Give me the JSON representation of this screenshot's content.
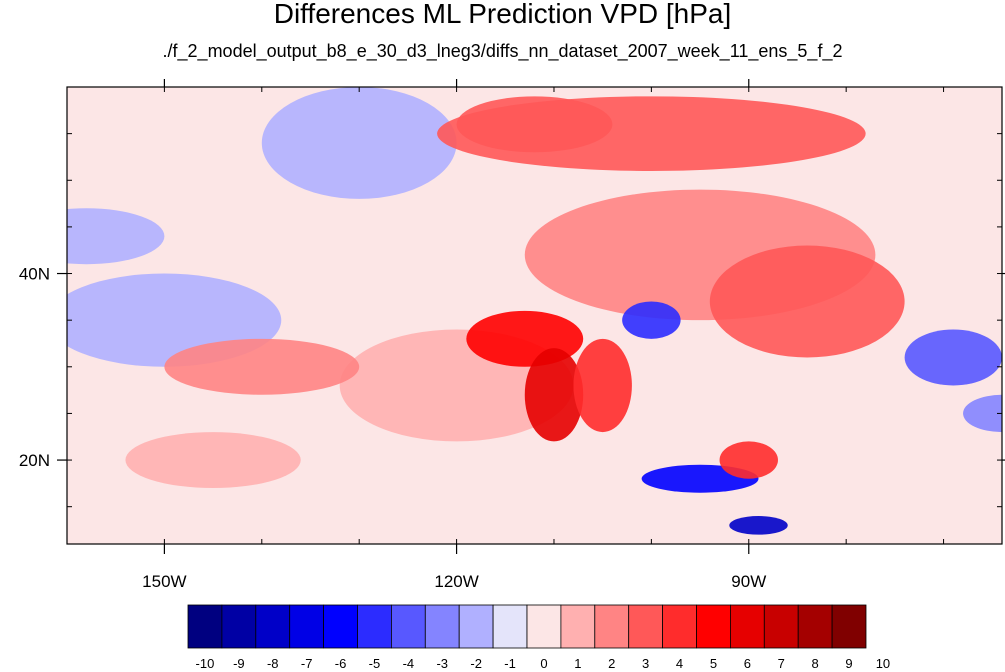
{
  "chart_data": {
    "type": "heatmap",
    "title": "Differences ML Prediction VPD [hPa]",
    "subtitle": "./f_2_model_output_b8_e_30_d3_lneg3/diffs_nn_dataset_2007_week_11_ens_5_f_2",
    "map_projection": "cylindrical equidistant",
    "lon_range": [
      -160,
      -64
    ],
    "lat_range": [
      11,
      60
    ],
    "x_ticks": [
      {
        "value": -150,
        "label": "150W"
      },
      {
        "value": -120,
        "label": "120W"
      },
      {
        "value": -90,
        "label": "90W"
      }
    ],
    "y_ticks": [
      {
        "value": 40,
        "label": "40N"
      },
      {
        "value": 20,
        "label": "20N"
      }
    ],
    "colorbar": {
      "orientation": "horizontal",
      "labels": [
        "-10",
        "-9",
        "-8",
        "-7",
        "-6",
        "-5",
        "-4",
        "-3",
        "-2",
        "-1",
        "0",
        "1",
        "2",
        "3",
        "4",
        "5",
        "6",
        "7",
        "8",
        "9",
        "10"
      ],
      "colors": [
        "#000080",
        "#0000a4",
        "#0000c8",
        "#0000e6",
        "#0000ff",
        "#2c2cff",
        "#5858ff",
        "#8484ff",
        "#b0b0ff",
        "#e4e4fa",
        "#fce6e6",
        "#ffb0b0",
        "#ff8484",
        "#ff5858",
        "#ff2c2c",
        "#ff0000",
        "#e60000",
        "#c80000",
        "#a40000",
        "#800000"
      ]
    },
    "regions": [
      {
        "lon": -150,
        "lat": 35,
        "rlon": 12,
        "rlat": 5,
        "value": -1.5
      },
      {
        "lon": -158,
        "lat": 44,
        "rlon": 8,
        "rlat": 3,
        "value": -1.5
      },
      {
        "lon": -130,
        "lat": 54,
        "rlon": 10,
        "rlat": 6,
        "value": -1.5
      },
      {
        "lon": -120,
        "lat": 28,
        "rlon": 12,
        "rlat": 6,
        "value": 1.5
      },
      {
        "lon": -140,
        "lat": 30,
        "rlon": 10,
        "rlat": 3,
        "value": 2.5
      },
      {
        "lon": -145,
        "lat": 20,
        "rlon": 9,
        "rlat": 3,
        "value": 1.5
      },
      {
        "lon": -100,
        "lat": 55,
        "rlon": 22,
        "rlat": 4,
        "value": 3.5
      },
      {
        "lon": -112,
        "lat": 56,
        "rlon": 8,
        "rlat": 3,
        "value": 3.5
      },
      {
        "lon": -95,
        "lat": 42,
        "rlon": 18,
        "rlat": 7,
        "value": 2.5
      },
      {
        "lon": -84,
        "lat": 37,
        "rlon": 10,
        "rlat": 6,
        "value": 3.5
      },
      {
        "lon": -113,
        "lat": 33,
        "rlon": 6,
        "rlat": 3,
        "value": 5.5
      },
      {
        "lon": -110,
        "lat": 27,
        "rlon": 3,
        "rlat": 5,
        "value": 6.5
      },
      {
        "lon": -105,
        "lat": 28,
        "rlon": 3,
        "rlat": 5,
        "value": 4.5
      },
      {
        "lon": -100,
        "lat": 35,
        "rlon": 3,
        "rlat": 2,
        "value": -4.5
      },
      {
        "lon": -95,
        "lat": 18,
        "rlon": 6,
        "rlat": 1.5,
        "value": -5.5
      },
      {
        "lon": -89,
        "lat": 13,
        "rlon": 3,
        "rlat": 1,
        "value": -7.5
      },
      {
        "lon": -69,
        "lat": 31,
        "rlon": 5,
        "rlat": 3,
        "value": -3.5
      },
      {
        "lon": -64,
        "lat": 25,
        "rlon": 4,
        "rlat": 2,
        "value": -2.5
      },
      {
        "lon": -90,
        "lat": 20,
        "rlon": 3,
        "rlat": 2,
        "value": 4.5
      }
    ]
  }
}
